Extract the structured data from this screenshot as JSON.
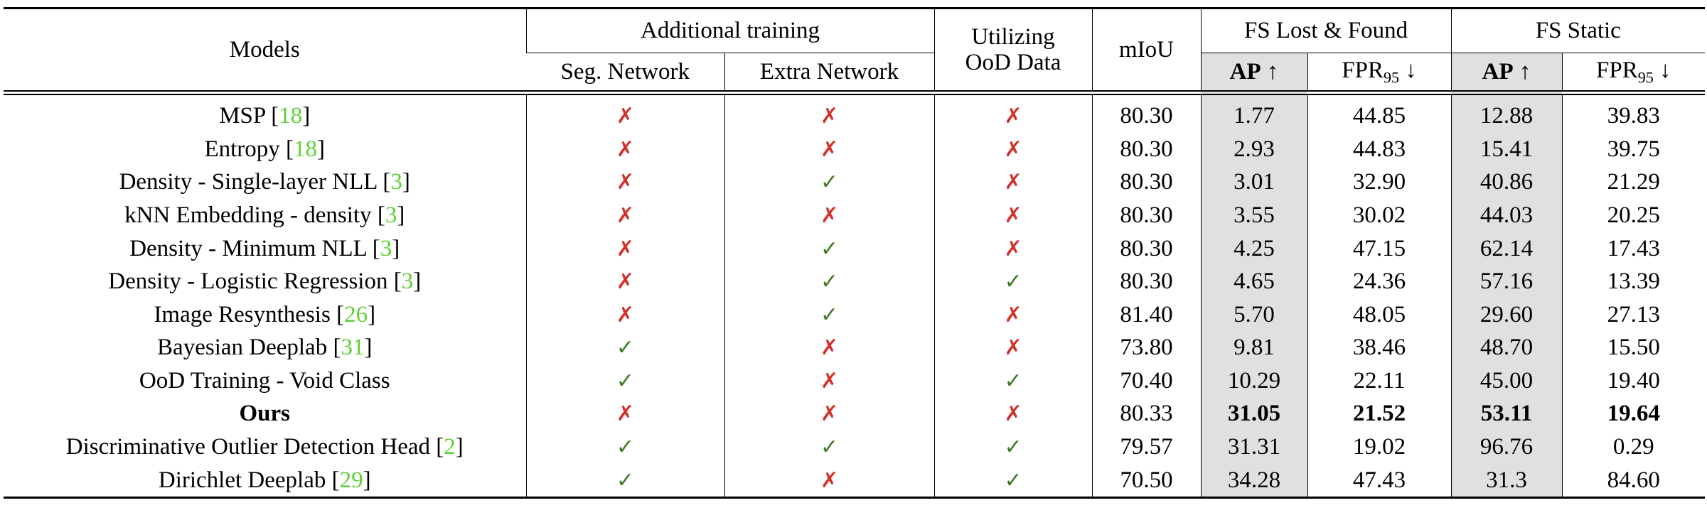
{
  "header": {
    "models": "Models",
    "additional_training": "Additional training",
    "seg_network": "Seg. Network",
    "extra_network": "Extra Network",
    "utilizing": [
      "Utilizing",
      "OoD Data"
    ],
    "miou": "mIoU",
    "fs_lost_found": "FS Lost & Found",
    "fs_static": "FS Static",
    "ap": {
      "main": "AP",
      "arrow": "↑"
    },
    "fpr": {
      "main": "FPR",
      "sub": "95",
      "arrow": "↓"
    }
  },
  "bracket": [
    "[",
    "]"
  ],
  "rows": [
    {
      "model": "MSP",
      "cite": "18",
      "seg": "✗",
      "extra": "✗",
      "ood": "✗",
      "miou": "80.30",
      "lf_ap": "1.77",
      "lf_fpr": "44.85",
      "st_ap": "12.88",
      "st_fpr": "39.83"
    },
    {
      "model": "Entropy",
      "cite": "18",
      "seg": "✗",
      "extra": "✗",
      "ood": "✗",
      "miou": "80.30",
      "lf_ap": "2.93",
      "lf_fpr": "44.83",
      "st_ap": "15.41",
      "st_fpr": "39.75"
    },
    {
      "model": "Density - Single-layer NLL",
      "cite": "3",
      "seg": "✗",
      "extra": "✓",
      "ood": "✗",
      "miou": "80.30",
      "lf_ap": "3.01",
      "lf_fpr": "32.90",
      "st_ap": "40.86",
      "st_fpr": "21.29"
    },
    {
      "model": "kNN Embedding - density",
      "cite": "3",
      "seg": "✗",
      "extra": "✗",
      "ood": "✗",
      "miou": "80.30",
      "lf_ap": "3.55",
      "lf_fpr": "30.02",
      "st_ap": "44.03",
      "st_fpr": "20.25"
    },
    {
      "model": "Density - Minimum NLL",
      "cite": "3",
      "seg": "✗",
      "extra": "✓",
      "ood": "✗",
      "miou": "80.30",
      "lf_ap": "4.25",
      "lf_fpr": "47.15",
      "st_ap": "62.14",
      "st_fpr": "17.43"
    },
    {
      "model": "Density - Logistic Regression",
      "cite": "3",
      "seg": "✗",
      "extra": "✓",
      "ood": "✓",
      "miou": "80.30",
      "lf_ap": "4.65",
      "lf_fpr": "24.36",
      "st_ap": "57.16",
      "st_fpr": "13.39"
    },
    {
      "model": "Image Resynthesis",
      "cite": "26",
      "seg": "✗",
      "extra": "✓",
      "ood": "✗",
      "miou": "81.40",
      "lf_ap": "5.70",
      "lf_fpr": "48.05",
      "st_ap": "29.60",
      "st_fpr": "27.13"
    },
    {
      "model": "Bayesian Deeplab",
      "cite": "31",
      "seg": "✓",
      "extra": "✗",
      "ood": "✗",
      "miou": "73.80",
      "lf_ap": "9.81",
      "lf_fpr": "38.46",
      "st_ap": "48.70",
      "st_fpr": "15.50"
    },
    {
      "model": "OoD Training - Void Class",
      "seg": "✓",
      "extra": "✗",
      "ood": "✓",
      "miou": "70.40",
      "lf_ap": "10.29",
      "lf_fpr": "22.11",
      "st_ap": "45.00",
      "st_fpr": "19.40"
    },
    {
      "model": "Ours",
      "bold": true,
      "seg": "✗",
      "extra": "✗",
      "ood": "✗",
      "miou": "80.33",
      "lf_ap": "31.05",
      "lf_fpr": "21.52",
      "st_ap": "53.11",
      "st_fpr": "19.64"
    },
    {
      "model": "Discriminative Outlier Detection Head",
      "cite": "2",
      "seg": "✓",
      "extra": "✓",
      "ood": "✓",
      "miou": "79.57",
      "lf_ap": "31.31",
      "lf_fpr": "19.02",
      "st_ap": "96.76",
      "st_fpr": "0.29"
    },
    {
      "model": "Dirichlet Deeplab",
      "cite": "29",
      "seg": "✓",
      "extra": "✗",
      "ood": "✓",
      "miou": "70.50",
      "lf_ap": "34.28",
      "lf_fpr": "47.43",
      "st_ap": "31.3",
      "st_fpr": "84.60"
    }
  ]
}
